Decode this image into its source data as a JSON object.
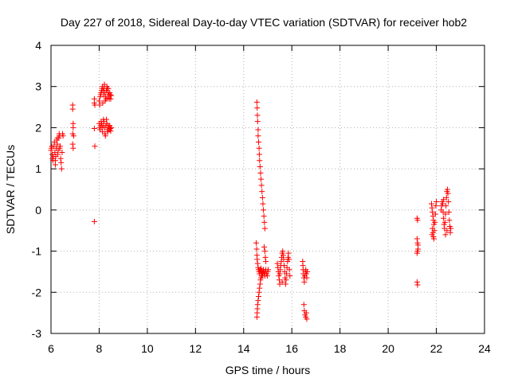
{
  "chart_data": {
    "type": "scatter",
    "title": "Day 227 of 2018, Sidereal Day-to-day VTEC variation (SDTVAR) for receiver hob2",
    "xlabel": "GPS time / hours",
    "ylabel": "SDTVAR / TECUs",
    "xlim": [
      6,
      24
    ],
    "ylim": [
      -3,
      4
    ],
    "xticks": [
      6,
      8,
      10,
      12,
      14,
      16,
      18,
      20,
      22,
      24
    ],
    "yticks": [
      -3,
      -2,
      -1,
      0,
      1,
      2,
      3,
      4
    ],
    "grid": true,
    "marker": "+",
    "color": "#ff0000",
    "series": [
      {
        "name": "SDTVAR",
        "points": [
          [
            6.0,
            1.45
          ],
          [
            6.02,
            1.5
          ],
          [
            6.04,
            1.55
          ],
          [
            6.05,
            1.35
          ],
          [
            6.06,
            1.25
          ],
          [
            6.08,
            1.2
          ],
          [
            6.1,
            1.3
          ],
          [
            6.12,
            1.55
          ],
          [
            6.14,
            1.65
          ],
          [
            6.16,
            1.4
          ],
          [
            6.18,
            1.2
          ],
          [
            6.2,
            1.3
          ],
          [
            6.22,
            1.5
          ],
          [
            6.24,
            1.7
          ],
          [
            6.26,
            1.6
          ],
          [
            6.28,
            1.35
          ],
          [
            6.3,
            1.45
          ],
          [
            6.32,
            1.75
          ],
          [
            6.34,
            1.85
          ],
          [
            6.36,
            1.8
          ],
          [
            6.38,
            1.55
          ],
          [
            6.4,
            1.25
          ],
          [
            6.42,
            1.15
          ],
          [
            6.44,
            1.0
          ],
          [
            6.46,
            1.4
          ],
          [
            6.48,
            1.85
          ],
          [
            6.5,
            1.8
          ],
          [
            6.18,
            1.1
          ],
          [
            6.26,
            1.75
          ],
          [
            6.36,
            1.5
          ],
          [
            6.9,
            2.55
          ],
          [
            6.9,
            2.45
          ],
          [
            6.92,
            2.1
          ],
          [
            6.92,
            2.0
          ],
          [
            6.9,
            1.85
          ],
          [
            6.94,
            1.8
          ],
          [
            6.9,
            1.6
          ],
          [
            6.92,
            1.5
          ],
          [
            7.8,
            2.7
          ],
          [
            7.8,
            2.6
          ],
          [
            7.82,
            2.55
          ],
          [
            7.8,
            1.98
          ],
          [
            7.82,
            1.55
          ],
          [
            7.8,
            -0.28
          ],
          [
            8.0,
            2.65
          ],
          [
            8.02,
            2.55
          ],
          [
            8.04,
            2.75
          ],
          [
            8.06,
            2.8
          ],
          [
            8.08,
            2.85
          ],
          [
            8.1,
            2.9
          ],
          [
            8.12,
            2.95
          ],
          [
            8.14,
            3.0
          ],
          [
            8.16,
            2.9
          ],
          [
            8.18,
            2.8
          ],
          [
            8.2,
            2.95
          ],
          [
            8.22,
            3.05
          ],
          [
            8.24,
            2.85
          ],
          [
            8.26,
            2.75
          ],
          [
            8.28,
            2.7
          ],
          [
            8.3,
            2.9
          ],
          [
            8.32,
            3.0
          ],
          [
            8.34,
            2.95
          ],
          [
            8.36,
            2.85
          ],
          [
            8.38,
            2.95
          ],
          [
            8.4,
            2.8
          ],
          [
            8.42,
            2.7
          ],
          [
            8.44,
            2.85
          ],
          [
            8.46,
            2.8
          ],
          [
            8.48,
            2.7
          ],
          [
            8.5,
            2.78
          ],
          [
            8.15,
            2.6
          ],
          [
            8.25,
            2.65
          ],
          [
            8.35,
            2.72
          ],
          [
            8.0,
            2.1
          ],
          [
            8.02,
            2.0
          ],
          [
            8.04,
            1.95
          ],
          [
            8.06,
            2.05
          ],
          [
            8.08,
            2.15
          ],
          [
            8.1,
            2.1
          ],
          [
            8.12,
            2.0
          ],
          [
            8.14,
            1.9
          ],
          [
            8.16,
            2.05
          ],
          [
            8.18,
            2.2
          ],
          [
            8.2,
            2.15
          ],
          [
            8.22,
            2.0
          ],
          [
            8.24,
            1.85
          ],
          [
            8.26,
            1.8
          ],
          [
            8.28,
            2.05
          ],
          [
            8.3,
            2.2
          ],
          [
            8.32,
            2.1
          ],
          [
            8.34,
            1.95
          ],
          [
            8.36,
            1.9
          ],
          [
            8.38,
            2.05
          ],
          [
            8.4,
            2.0
          ],
          [
            8.42,
            1.95
          ],
          [
            8.44,
            2.05
          ],
          [
            8.46,
            1.98
          ],
          [
            8.48,
            1.92
          ],
          [
            8.5,
            2.0
          ],
          [
            14.55,
            2.62
          ],
          [
            14.56,
            2.48
          ],
          [
            14.57,
            2.3
          ],
          [
            14.58,
            2.15
          ],
          [
            14.6,
            1.95
          ],
          [
            14.6,
            1.8
          ],
          [
            14.62,
            1.65
          ],
          [
            14.64,
            1.5
          ],
          [
            14.65,
            1.35
          ],
          [
            14.66,
            1.2
          ],
          [
            14.68,
            1.05
          ],
          [
            14.7,
            0.9
          ],
          [
            14.72,
            0.75
          ],
          [
            14.74,
            0.6
          ],
          [
            14.76,
            0.45
          ],
          [
            14.78,
            0.3
          ],
          [
            14.8,
            0.15
          ],
          [
            14.82,
            0.0
          ],
          [
            14.84,
            -0.15
          ],
          [
            14.86,
            -0.3
          ],
          [
            14.88,
            -0.45
          ],
          [
            14.52,
            -0.8
          ],
          [
            14.54,
            -0.95
          ],
          [
            14.55,
            -1.1
          ],
          [
            14.56,
            -1.2
          ],
          [
            14.58,
            -1.3
          ],
          [
            14.6,
            -1.4
          ],
          [
            14.62,
            -1.45
          ],
          [
            14.64,
            -1.5
          ],
          [
            14.66,
            -1.55
          ],
          [
            14.68,
            -1.45
          ],
          [
            14.7,
            -1.5
          ],
          [
            14.72,
            -1.42
          ],
          [
            14.74,
            -1.48
          ],
          [
            14.76,
            -1.55
          ],
          [
            14.78,
            -1.6
          ],
          [
            14.8,
            -1.52
          ],
          [
            14.82,
            -1.45
          ],
          [
            14.84,
            -1.5
          ],
          [
            14.86,
            -1.55
          ],
          [
            14.88,
            -1.6
          ],
          [
            14.9,
            -1.5
          ],
          [
            14.92,
            -1.45
          ],
          [
            14.95,
            -1.55
          ],
          [
            14.98,
            -1.6
          ],
          [
            15.0,
            -1.5
          ],
          [
            15.02,
            -1.45
          ],
          [
            14.85,
            -0.9
          ],
          [
            14.88,
            -1.0
          ],
          [
            14.9,
            -1.15
          ],
          [
            14.92,
            -1.25
          ],
          [
            14.55,
            -2.6
          ],
          [
            14.56,
            -2.5
          ],
          [
            14.57,
            -2.4
          ],
          [
            14.58,
            -2.3
          ],
          [
            14.6,
            -2.2
          ],
          [
            14.62,
            -2.1
          ],
          [
            14.64,
            -2.0
          ],
          [
            14.66,
            -1.9
          ],
          [
            14.68,
            -1.8
          ],
          [
            14.7,
            -1.7
          ],
          [
            14.72,
            -1.65
          ],
          [
            14.74,
            -1.6
          ],
          [
            15.4,
            -1.3
          ],
          [
            15.42,
            -1.4
          ],
          [
            15.44,
            -1.5
          ],
          [
            15.46,
            -1.6
          ],
          [
            15.48,
            -1.7
          ],
          [
            15.5,
            -1.55
          ],
          [
            15.52,
            -1.45
          ],
          [
            15.54,
            -1.35
          ],
          [
            15.56,
            -1.25
          ],
          [
            15.58,
            -1.15
          ],
          [
            15.6,
            -1.05
          ],
          [
            15.62,
            -1.0
          ],
          [
            15.64,
            -1.1
          ],
          [
            15.66,
            -1.2
          ],
          [
            15.68,
            -1.35
          ],
          [
            15.7,
            -1.5
          ],
          [
            15.72,
            -1.65
          ],
          [
            15.74,
            -1.8
          ],
          [
            15.76,
            -1.7
          ],
          [
            15.78,
            -1.55
          ],
          [
            15.8,
            -1.4
          ],
          [
            15.82,
            -1.25
          ],
          [
            15.84,
            -1.15
          ],
          [
            15.86,
            -1.05
          ],
          [
            15.88,
            -1.2
          ],
          [
            15.9,
            -1.45
          ],
          [
            15.92,
            -1.6
          ],
          [
            15.5,
            -1.8
          ],
          [
            15.6,
            -1.75
          ],
          [
            16.45,
            -1.25
          ],
          [
            16.46,
            -1.35
          ],
          [
            16.47,
            -1.45
          ],
          [
            16.48,
            -1.55
          ],
          [
            16.5,
            -1.65
          ],
          [
            16.52,
            -1.75
          ],
          [
            16.54,
            -1.6
          ],
          [
            16.56,
            -1.5
          ],
          [
            16.58,
            -1.45
          ],
          [
            16.6,
            -1.55
          ],
          [
            16.62,
            -1.65
          ],
          [
            16.64,
            -1.5
          ],
          [
            16.5,
            -2.3
          ],
          [
            16.52,
            -2.45
          ],
          [
            16.55,
            -2.55
          ],
          [
            16.58,
            -2.6
          ],
          [
            16.62,
            -2.65
          ],
          [
            16.6,
            -2.5
          ],
          [
            21.2,
            -0.2
          ],
          [
            21.22,
            -0.25
          ],
          [
            21.2,
            -0.7
          ],
          [
            21.22,
            -0.8
          ],
          [
            21.24,
            -0.95
          ],
          [
            21.2,
            -1.05
          ],
          [
            21.22,
            -1.0
          ],
          [
            21.24,
            -0.85
          ],
          [
            21.2,
            -1.75
          ],
          [
            21.22,
            -1.82
          ],
          [
            21.8,
            0.15
          ],
          [
            21.82,
            0.05
          ],
          [
            21.84,
            -0.05
          ],
          [
            21.86,
            -0.15
          ],
          [
            21.88,
            -0.25
          ],
          [
            21.9,
            -0.35
          ],
          [
            21.84,
            -0.45
          ],
          [
            21.86,
            -0.55
          ],
          [
            21.88,
            -0.65
          ],
          [
            21.9,
            -0.7
          ],
          [
            21.92,
            -0.5
          ],
          [
            21.94,
            -0.3
          ],
          [
            21.96,
            -0.1
          ],
          [
            21.98,
            0.1
          ],
          [
            22.0,
            0.2
          ],
          [
            21.82,
            -0.6
          ],
          [
            22.2,
            0.0
          ],
          [
            22.22,
            0.1
          ],
          [
            22.24,
            0.2
          ],
          [
            22.26,
            0.15
          ],
          [
            22.28,
            -0.05
          ],
          [
            22.3,
            -0.2
          ],
          [
            22.32,
            -0.35
          ],
          [
            22.34,
            -0.45
          ],
          [
            22.36,
            -0.3
          ],
          [
            22.38,
            -0.1
          ],
          [
            22.4,
            0.1
          ],
          [
            22.42,
            0.3
          ],
          [
            22.44,
            0.45
          ],
          [
            22.46,
            0.5
          ],
          [
            22.48,
            0.4
          ],
          [
            22.5,
            0.2
          ],
          [
            22.52,
            -0.05
          ],
          [
            22.54,
            -0.25
          ],
          [
            22.56,
            -0.4
          ],
          [
            22.58,
            -0.55
          ],
          [
            22.6,
            -0.45
          ],
          [
            22.38,
            -0.6
          ],
          [
            22.44,
            -0.5
          ],
          [
            22.3,
            0.25
          ]
        ]
      }
    ]
  }
}
